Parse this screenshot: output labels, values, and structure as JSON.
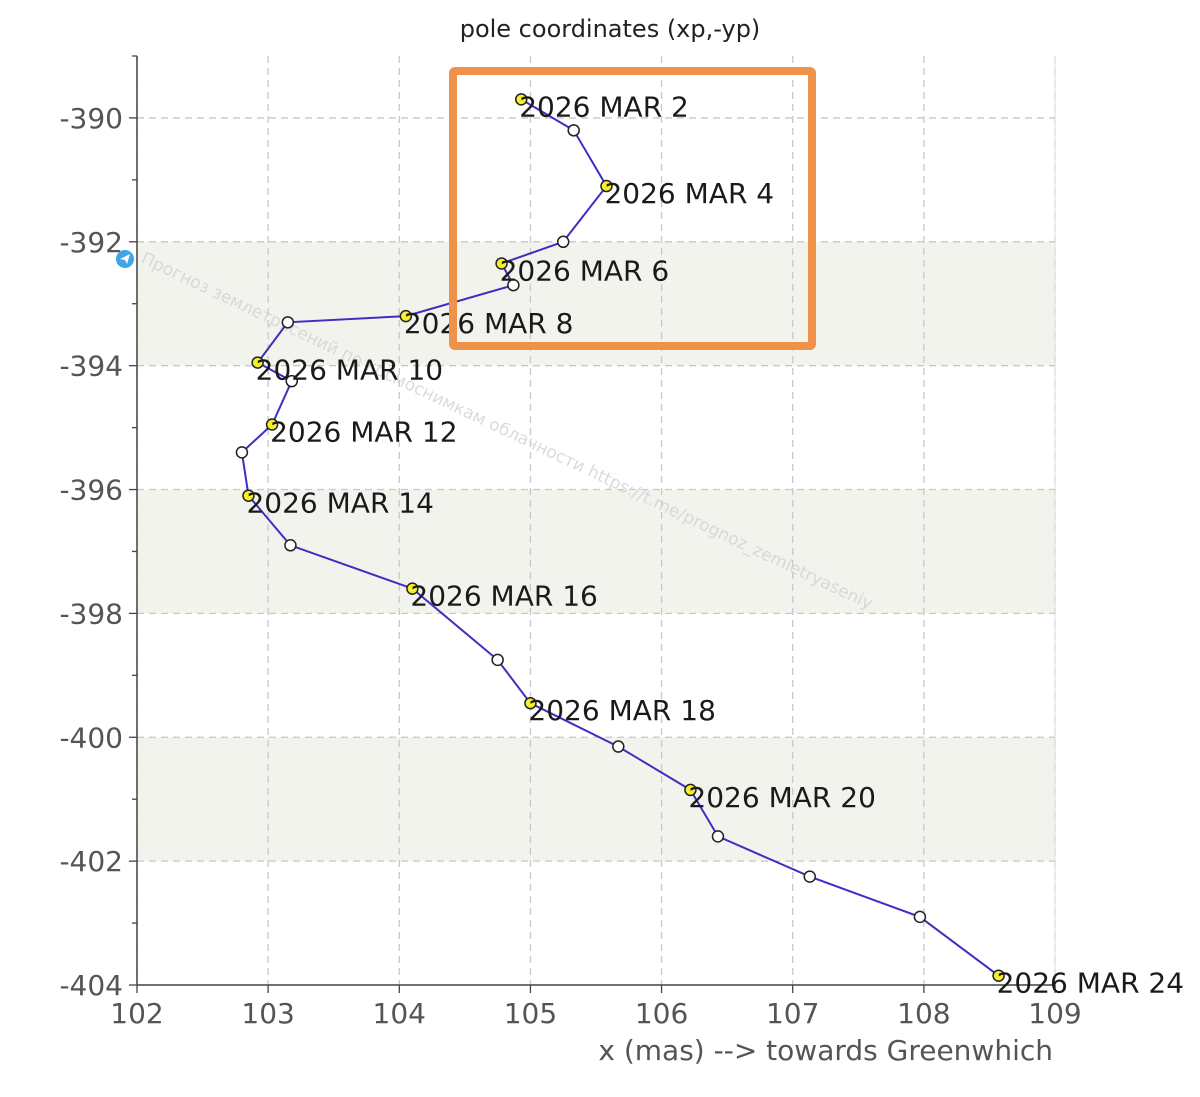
{
  "chart_data": {
    "type": "line",
    "title": "pole coordinates (xp,-yp)",
    "xlabel": "x (mas) --> towards Greenwhich",
    "ylabel": "",
    "xlim": [
      102,
      109
    ],
    "ylim": [
      -404,
      -389
    ],
    "x_ticks": [
      102,
      103,
      104,
      105,
      106,
      107,
      108,
      109
    ],
    "y_ticks": [
      -390,
      -392,
      -394,
      -396,
      -398,
      -400,
      -402,
      -404
    ],
    "grid": true,
    "series": [
      {
        "points": [
          {
            "x": 104.93,
            "y": -389.7,
            "label": "2026 MAR 2",
            "marked": true
          },
          {
            "x": 105.33,
            "y": -390.2,
            "label": "",
            "marked": false
          },
          {
            "x": 105.58,
            "y": -391.1,
            "label": "2026 MAR 4",
            "marked": true
          },
          {
            "x": 105.25,
            "y": -392.0,
            "label": "",
            "marked": false
          },
          {
            "x": 104.78,
            "y": -392.35,
            "label": "2026 MAR 6",
            "marked": true
          },
          {
            "x": 104.87,
            "y": -392.7,
            "label": "",
            "marked": false
          },
          {
            "x": 104.05,
            "y": -393.2,
            "label": "2026 MAR 8",
            "marked": true
          },
          {
            "x": 103.15,
            "y": -393.3,
            "label": "",
            "marked": false
          },
          {
            "x": 102.92,
            "y": -393.95,
            "label": "2026 MAR 10",
            "marked": true
          },
          {
            "x": 103.18,
            "y": -394.25,
            "label": "",
            "marked": false
          },
          {
            "x": 103.03,
            "y": -394.95,
            "label": "2026 MAR 12",
            "marked": true
          },
          {
            "x": 102.8,
            "y": -395.4,
            "label": "",
            "marked": false
          },
          {
            "x": 102.85,
            "y": -396.1,
            "label": "2026 MAR 14",
            "marked": true
          },
          {
            "x": 103.17,
            "y": -396.9,
            "label": "",
            "marked": false
          },
          {
            "x": 104.1,
            "y": -397.6,
            "label": "2026 MAR 16",
            "marked": true
          },
          {
            "x": 104.75,
            "y": -398.75,
            "label": "",
            "marked": false
          },
          {
            "x": 105.0,
            "y": -399.45,
            "label": "2026 MAR 18",
            "marked": true
          },
          {
            "x": 105.67,
            "y": -400.15,
            "label": "",
            "marked": false
          },
          {
            "x": 106.22,
            "y": -400.85,
            "label": "2026 MAR 20",
            "marked": true
          },
          {
            "x": 106.43,
            "y": -401.6,
            "label": "",
            "marked": false
          },
          {
            "x": 107.13,
            "y": -402.25,
            "label": "",
            "marked": false
          },
          {
            "x": 107.97,
            "y": -402.9,
            "label": "",
            "marked": false
          },
          {
            "x": 108.57,
            "y": -403.85,
            "label": "2026 MAR 24",
            "marked": true
          }
        ]
      }
    ]
  },
  "watermark": {
    "text": "Прогноз землетрясений по космоснимкам облачности https://t.me/prognoz_zemletryaseniy"
  },
  "colors": {
    "line": "#3b2fc4",
    "marker_fill": "#f5f02a",
    "highlight_box": "#f0914a",
    "telegram": "#3fa6e6",
    "band": "#f3f3ee"
  }
}
